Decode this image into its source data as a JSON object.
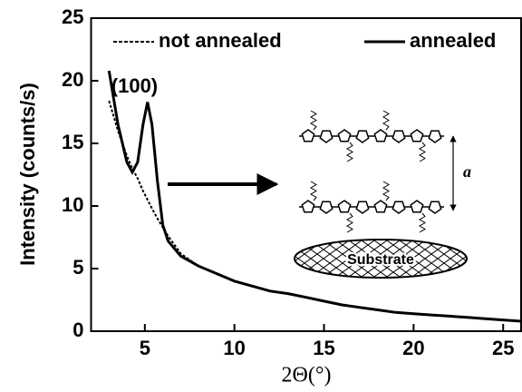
{
  "chart_data": {
    "type": "line",
    "y_label": "Intensity (counts/s)",
    "x_label": "2Θ(°)",
    "x": [
      3,
      3.5,
      4,
      4.3,
      4.6,
      4.9,
      5.15,
      5.4,
      5.7,
      6,
      6.3,
      7,
      8,
      9,
      10,
      11,
      12,
      13,
      14,
      15,
      16,
      17,
      18,
      19,
      20,
      21,
      22,
      23,
      24,
      25,
      26
    ],
    "series": [
      {
        "name": "not annealed",
        "color": "#000000",
        "line_style": "dashed",
        "values": [
          18.4,
          16,
          14,
          13,
          12.2,
          11.2,
          10.5,
          9.8,
          9.0,
          8.3,
          7.6,
          6.2,
          5.2,
          4.6,
          4.0,
          3.6,
          3.2,
          3.0,
          2.7,
          2.4,
          2.1,
          1.9,
          1.7,
          1.5,
          1.4,
          1.3,
          1.2,
          1.1,
          1.0,
          0.9,
          0.8
        ]
      },
      {
        "name": "annealed",
        "color": "#000000",
        "line_style": "solid",
        "values": [
          20.8,
          16.5,
          13.5,
          12.7,
          13.5,
          16.5,
          18.3,
          16.5,
          12,
          8.5,
          7.2,
          6.0,
          5.2,
          4.6,
          4.0,
          3.6,
          3.2,
          3.0,
          2.7,
          2.4,
          2.1,
          1.9,
          1.7,
          1.5,
          1.4,
          1.3,
          1.2,
          1.1,
          1.0,
          0.9,
          0.8
        ]
      }
    ],
    "xlim": [
      2,
      26
    ],
    "xticks": [
      5,
      10,
      15,
      20,
      25
    ],
    "ylim": [
      0,
      25
    ],
    "yticks": [
      0,
      5,
      10,
      15,
      20,
      25
    ],
    "legend": "top",
    "peak_label": "(100)",
    "inset_labels": {
      "spacing": "a",
      "substrate": "Substrate"
    }
  }
}
